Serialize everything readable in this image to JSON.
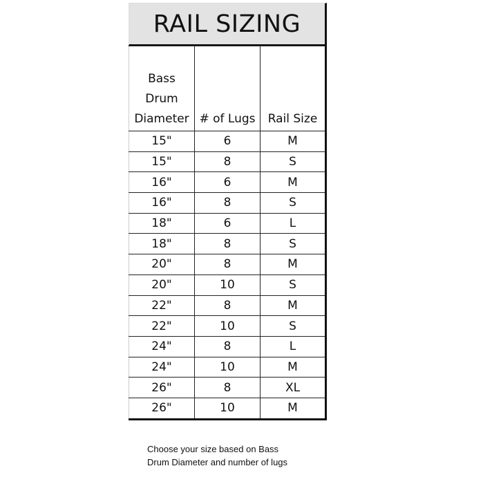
{
  "title": "RAIL SIZING",
  "headers": {
    "diameter": [
      "Bass",
      "Drum",
      "Diameter"
    ],
    "lugs": "# of Lugs",
    "rail_size": "Rail Size"
  },
  "rows": [
    {
      "diameter": "15\"",
      "lugs": "6",
      "rail_size": "M"
    },
    {
      "diameter": "15\"",
      "lugs": "8",
      "rail_size": "S"
    },
    {
      "diameter": "16\"",
      "lugs": "6",
      "rail_size": "M"
    },
    {
      "diameter": "16\"",
      "lugs": "8",
      "rail_size": "S"
    },
    {
      "diameter": "18\"",
      "lugs": "6",
      "rail_size": "L"
    },
    {
      "diameter": "18\"",
      "lugs": "8",
      "rail_size": "S"
    },
    {
      "diameter": "20\"",
      "lugs": "8",
      "rail_size": "M"
    },
    {
      "diameter": "20\"",
      "lugs": "10",
      "rail_size": "S"
    },
    {
      "diameter": "22\"",
      "lugs": "8",
      "rail_size": "M"
    },
    {
      "diameter": "22\"",
      "lugs": "10",
      "rail_size": "S"
    },
    {
      "diameter": "24\"",
      "lugs": "8",
      "rail_size": "L"
    },
    {
      "diameter": "24\"",
      "lugs": "10",
      "rail_size": "M"
    },
    {
      "diameter": "26\"",
      "lugs": "8",
      "rail_size": "XL"
    },
    {
      "diameter": "26\"",
      "lugs": "10",
      "rail_size": "M"
    }
  ],
  "caption": [
    "Choose your size based on Bass",
    "Drum Diameter and number of lugs"
  ]
}
